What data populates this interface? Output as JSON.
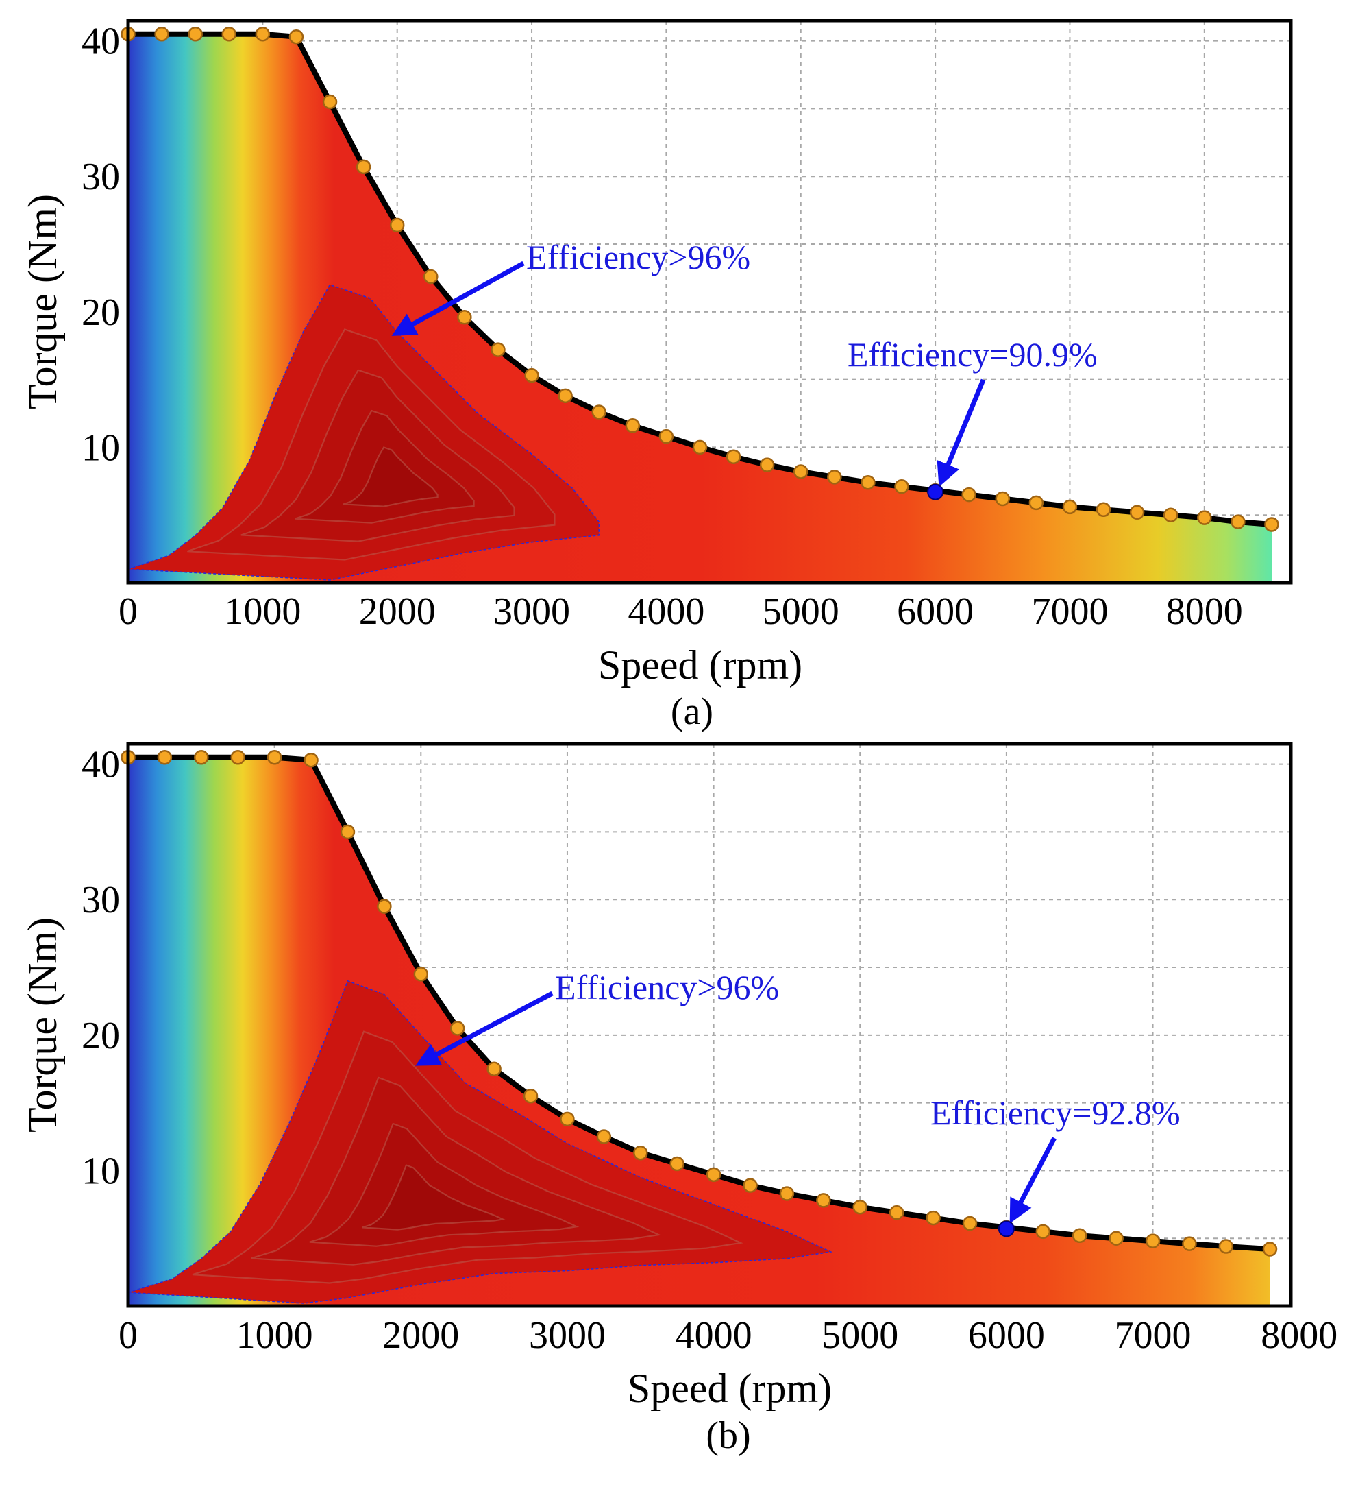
{
  "chart_data": [
    {
      "type": "contour",
      "panel_label": "(a)",
      "xlabel": "Speed (rpm)",
      "ylabel": "Torque (Nm)",
      "xlim": [
        0,
        8600
      ],
      "ylim": [
        0,
        41.5
      ],
      "xticks": [
        0,
        1000,
        2000,
        3000,
        4000,
        5000,
        6000,
        7000,
        8000
      ],
      "yticks": [
        10,
        20,
        30,
        40
      ],
      "grid": true,
      "envelope": {
        "speed": [
          0,
          250,
          500,
          750,
          1000,
          1250,
          1500,
          1750,
          2000,
          2250,
          2500,
          2750,
          3000,
          3250,
          3500,
          3750,
          4000,
          4250,
          4500,
          4750,
          5000,
          5250,
          5500,
          5750,
          6000,
          6250,
          6500,
          6750,
          7000,
          7250,
          7500,
          7750,
          8000,
          8250,
          8500
        ],
        "torque": [
          40.5,
          40.5,
          40.5,
          40.5,
          40.5,
          40.3,
          35.5,
          30.7,
          26.4,
          22.6,
          19.6,
          17.2,
          15.3,
          13.8,
          12.6,
          11.6,
          10.8,
          10.0,
          9.3,
          8.7,
          8.2,
          7.8,
          7.4,
          7.1,
          6.8,
          6.5,
          6.2,
          5.9,
          5.6,
          5.4,
          5.2,
          5.0,
          4.8,
          4.5,
          4.3
        ]
      },
      "contour_96_percent": {
        "speed": [
          0,
          300,
          500,
          700,
          900,
          1100,
          1300,
          1500,
          1800,
          2000,
          2300,
          2600,
          3000,
          3300,
          3500,
          3500,
          3000,
          2500,
          2000,
          1500
        ],
        "torque": [
          1.0,
          2.0,
          3.5,
          5.5,
          9.0,
          14.0,
          18.5,
          22.0,
          21.0,
          18.5,
          15.5,
          12.5,
          9.5,
          7.0,
          4.5,
          3.5,
          3.0,
          2.2,
          1.2,
          0.2
        ]
      },
      "annotations": [
        {
          "text": "Efficiency>96%",
          "target_speed": 2000,
          "target_torque": 18.5
        },
        {
          "text": "Efficiency=90.9%",
          "target_speed": 6000,
          "target_torque": 6.7
        }
      ],
      "operating_point": {
        "speed": 6000,
        "torque": 6.7,
        "efficiency_percent": 90.9
      }
    },
    {
      "type": "contour",
      "panel_label": "(b)",
      "xlabel": "Speed (rpm)",
      "ylabel": "Torque (Nm)",
      "xlim": [
        0,
        7900
      ],
      "ylim": [
        0,
        41.5
      ],
      "xticks": [
        0,
        1000,
        2000,
        3000,
        4000,
        5000,
        6000,
        7000,
        8000
      ],
      "yticks": [
        10,
        20,
        30,
        40
      ],
      "grid": true,
      "envelope": {
        "speed": [
          0,
          250,
          500,
          750,
          1000,
          1250,
          1500,
          1750,
          2000,
          2250,
          2500,
          2750,
          3000,
          3250,
          3500,
          3750,
          4000,
          4250,
          4500,
          4750,
          5000,
          5250,
          5500,
          5750,
          6000,
          6250,
          6500,
          6750,
          7000,
          7250,
          7500,
          7800
        ],
        "torque": [
          40.5,
          40.5,
          40.5,
          40.5,
          40.5,
          40.3,
          35.0,
          29.5,
          24.5,
          20.5,
          17.5,
          15.5,
          13.8,
          12.5,
          11.3,
          10.5,
          9.7,
          8.9,
          8.3,
          7.8,
          7.3,
          6.9,
          6.5,
          6.1,
          5.8,
          5.5,
          5.2,
          5.0,
          4.8,
          4.6,
          4.4,
          4.2
        ]
      },
      "contour_96_percent": {
        "speed": [
          0,
          300,
          500,
          700,
          900,
          1100,
          1300,
          1500,
          1750,
          2000,
          2300,
          2700,
          3000,
          3500,
          4000,
          4500,
          4800,
          4500,
          4000,
          3500,
          3000,
          2500,
          2000,
          1500,
          1200
        ],
        "torque": [
          1.0,
          2.0,
          3.5,
          5.5,
          9.0,
          13.5,
          18.5,
          24.0,
          23.0,
          20.0,
          16.5,
          14.0,
          12.0,
          9.5,
          7.5,
          5.5,
          4.0,
          3.5,
          3.2,
          3.0,
          2.6,
          2.4,
          1.6,
          0.6,
          0.2
        ]
      },
      "annotations": [
        {
          "text": "Efficiency>96%",
          "target_speed": 2000,
          "target_torque": 18.0
        },
        {
          "text": "Efficiency=92.8%",
          "target_speed": 6000,
          "target_torque": 5.7
        }
      ],
      "operating_point": {
        "speed": 6000,
        "torque": 5.7,
        "efficiency_percent": 92.8
      }
    }
  ]
}
